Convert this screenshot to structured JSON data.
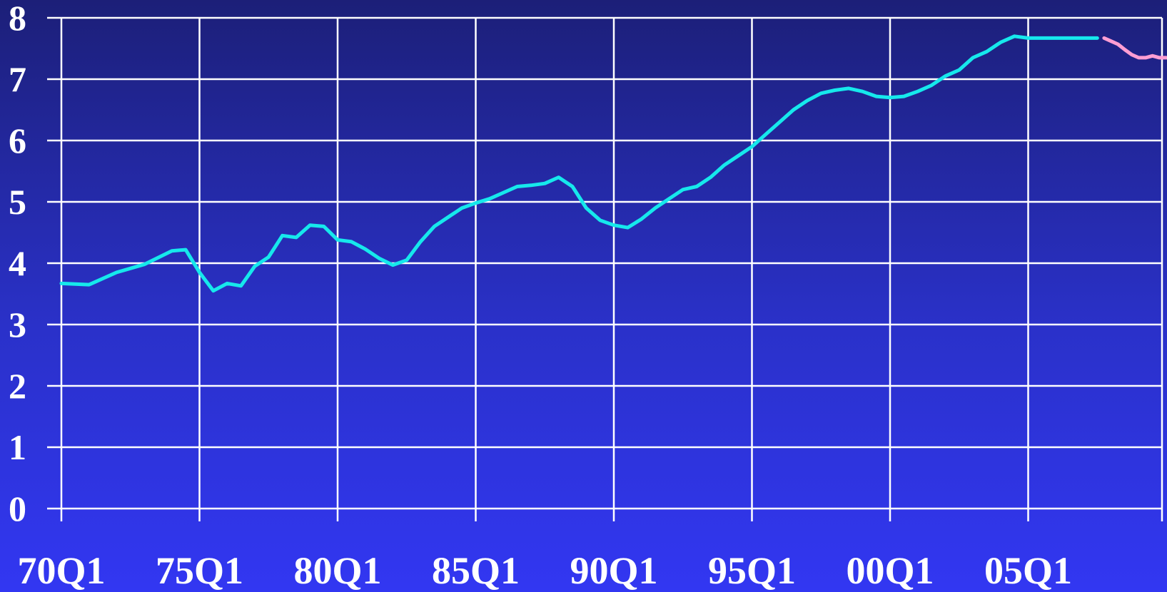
{
  "chart_data": {
    "type": "line",
    "title": "",
    "xlabel": "",
    "ylabel": "",
    "ylim": [
      0,
      8
    ],
    "yticks": [
      "0",
      "1",
      "2",
      "3",
      "4",
      "5",
      "6",
      "7",
      "8"
    ],
    "xticks": [
      "70Q1",
      "75Q1",
      "80Q1",
      "85Q1",
      "90Q1",
      "95Q1",
      "00Q1",
      "05Q1"
    ],
    "grid": true,
    "colors": {
      "historical": "#16e8ec",
      "forecast": "#ff9ed3",
      "grid": "#ffffff"
    },
    "series": [
      {
        "role": "historical",
        "x": [
          "70Q1",
          "71Q1",
          "72Q1",
          "73Q1",
          "74Q1",
          "74Q3",
          "75Q1",
          "75Q3",
          "76Q1",
          "76Q3",
          "77Q1",
          "77Q3",
          "78Q1",
          "78Q3",
          "79Q1",
          "79Q3",
          "80Q1",
          "80Q3",
          "81Q1",
          "81Q3",
          "82Q1",
          "82Q3",
          "83Q1",
          "83Q3",
          "84Q1",
          "84Q3",
          "85Q1",
          "85Q3",
          "86Q1",
          "86Q3",
          "87Q1",
          "87Q3",
          "88Q1",
          "88Q3",
          "89Q1",
          "89Q3",
          "90Q1",
          "90Q3",
          "91Q1",
          "91Q3",
          "92Q1",
          "92Q3",
          "93Q1",
          "93Q3",
          "94Q1",
          "94Q3",
          "95Q1",
          "95Q3",
          "96Q1",
          "96Q3",
          "97Q1",
          "97Q3",
          "98Q1",
          "98Q3",
          "99Q1",
          "99Q3",
          "00Q1",
          "00Q3",
          "01Q1",
          "01Q3",
          "02Q1",
          "02Q3",
          "03Q1",
          "03Q3",
          "04Q1",
          "04Q3",
          "05Q1",
          "05Q3",
          "06Q1",
          "06Q3",
          "07Q1",
          "07Q3"
        ],
        "values": [
          3.67,
          3.65,
          3.85,
          3.98,
          4.2,
          4.22,
          3.85,
          3.55,
          3.67,
          3.63,
          3.95,
          4.1,
          4.45,
          4.42,
          4.62,
          4.6,
          4.38,
          4.35,
          4.23,
          4.08,
          3.97,
          4.05,
          4.35,
          4.6,
          4.75,
          4.9,
          4.98,
          5.05,
          5.15,
          5.25,
          5.27,
          5.3,
          5.4,
          5.25,
          4.9,
          4.7,
          4.62,
          4.58,
          4.72,
          4.9,
          5.05,
          5.2,
          5.25,
          5.4,
          5.6,
          5.75,
          5.9,
          6.1,
          6.3,
          6.5,
          6.65,
          6.77,
          6.82,
          6.85,
          6.8,
          6.72,
          6.7,
          6.72,
          6.8,
          6.9,
          7.05,
          7.15,
          7.35,
          7.45,
          7.6,
          7.7,
          7.67,
          7.67,
          7.67,
          7.67,
          7.67,
          7.67
        ]
      },
      {
        "role": "forecast",
        "x": [
          "07Q4",
          "08Q1",
          "08Q2",
          "08Q3",
          "08Q4",
          "09Q1",
          "09Q2",
          "09Q3",
          "09Q4",
          "10Q1"
        ],
        "values": [
          7.67,
          7.62,
          7.57,
          7.48,
          7.4,
          7.35,
          7.35,
          7.38,
          7.35,
          7.35
        ]
      }
    ]
  }
}
